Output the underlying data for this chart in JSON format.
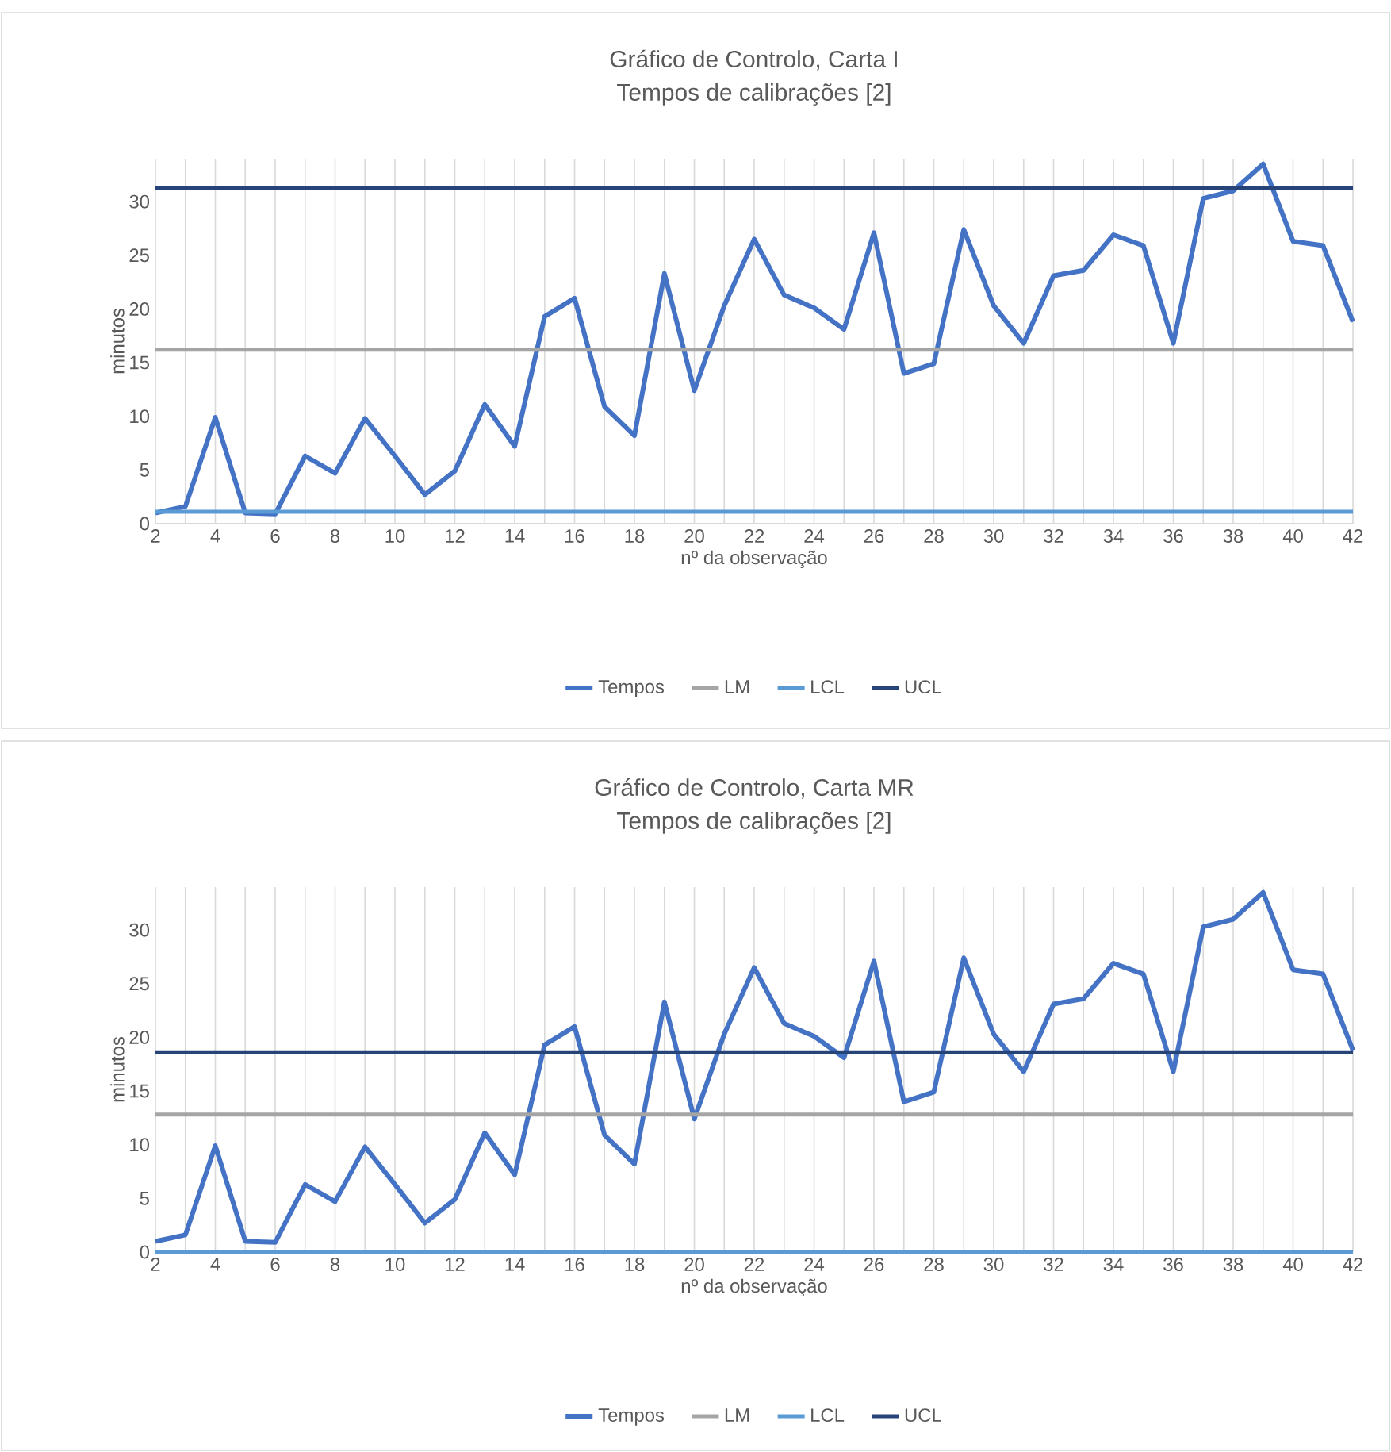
{
  "chart_data": [
    {
      "type": "line",
      "title": "Gráfico de Controlo, Carta I",
      "subtitle": "Tempos de calibrações [2]",
      "xlabel": "nº da observação",
      "ylabel": "minutos",
      "grid": "x",
      "legend": "bottom",
      "x": [
        2,
        3,
        4,
        5,
        6,
        7,
        8,
        9,
        10,
        11,
        12,
        13,
        14,
        15,
        16,
        17,
        18,
        19,
        20,
        21,
        22,
        23,
        24,
        25,
        26,
        27,
        28,
        29,
        30,
        31,
        32,
        33,
        34,
        35,
        36,
        37,
        38,
        39,
        40,
        41,
        42
      ],
      "xlim": [
        2,
        42
      ],
      "xticks": [
        2,
        {
          "value": 3,
          "label": null
        },
        4,
        {
          "value": 5,
          "label": null
        },
        6,
        {
          "value": 7,
          "label": null
        },
        8,
        {
          "value": 9,
          "label": null
        },
        10,
        {
          "value": 11,
          "label": null
        },
        12,
        {
          "value": 13,
          "label": null
        },
        14,
        {
          "value": 15,
          "label": null
        },
        16,
        {
          "value": 17,
          "label": null
        },
        18,
        {
          "value": 19,
          "label": null
        },
        20,
        {
          "value": 21,
          "label": null
        },
        22,
        {
          "value": 23,
          "label": null
        },
        24,
        {
          "value": 25,
          "label": null
        },
        26,
        {
          "value": 27,
          "label": null
        },
        28,
        {
          "value": 29,
          "label": null
        },
        30,
        {
          "value": 31,
          "label": null
        },
        32,
        {
          "value": 33,
          "label": null
        },
        34,
        {
          "value": 35,
          "label": null
        },
        36,
        {
          "value": 37,
          "label": null
        },
        38,
        {
          "value": 39,
          "label": null
        },
        40,
        {
          "value": 41,
          "label": null
        },
        42
      ],
      "ylim": [
        0,
        34
      ],
      "yticks": [
        0,
        5,
        10,
        15,
        20,
        25,
        30
      ],
      "series": [
        {
          "name": "Tempos",
          "color": "#4472c4",
          "values": [
            1.0,
            1.6,
            9.9,
            1.0,
            0.9,
            6.3,
            4.7,
            9.8,
            6.3,
            2.7,
            4.9,
            11.1,
            7.2,
            19.3,
            21.0,
            10.9,
            8.2,
            23.3,
            12.4,
            20.3,
            26.5,
            21.3,
            20.1,
            18.1,
            27.1,
            14.0,
            14.9,
            27.4,
            20.3,
            16.8,
            23.1,
            23.6,
            26.9,
            25.9,
            16.8,
            30.3,
            31.0,
            33.5,
            26.3,
            25.9,
            18.8
          ]
        },
        {
          "name": "LM",
          "color": "#a5a5a5",
          "values": [
            16.2,
            16.2,
            16.2,
            16.2,
            16.2,
            16.2,
            16.2,
            16.2,
            16.2,
            16.2,
            16.2,
            16.2,
            16.2,
            16.2,
            16.2,
            16.2,
            16.2,
            16.2,
            16.2,
            16.2,
            16.2,
            16.2,
            16.2,
            16.2,
            16.2,
            16.2,
            16.2,
            16.2,
            16.2,
            16.2,
            16.2,
            16.2,
            16.2,
            16.2,
            16.2,
            16.2,
            16.2,
            16.2,
            16.2,
            16.2,
            16.2
          ]
        },
        {
          "name": "LCL",
          "color": "#5b9bd5",
          "values": [
            1.1,
            1.1,
            1.1,
            1.1,
            1.1,
            1.1,
            1.1,
            1.1,
            1.1,
            1.1,
            1.1,
            1.1,
            1.1,
            1.1,
            1.1,
            1.1,
            1.1,
            1.1,
            1.1,
            1.1,
            1.1,
            1.1,
            1.1,
            1.1,
            1.1,
            1.1,
            1.1,
            1.1,
            1.1,
            1.1,
            1.1,
            1.1,
            1.1,
            1.1,
            1.1,
            1.1,
            1.1,
            1.1,
            1.1,
            1.1,
            1.1
          ]
        },
        {
          "name": "UCL",
          "color": "#264478",
          "values": [
            31.3,
            31.3,
            31.3,
            31.3,
            31.3,
            31.3,
            31.3,
            31.3,
            31.3,
            31.3,
            31.3,
            31.3,
            31.3,
            31.3,
            31.3,
            31.3,
            31.3,
            31.3,
            31.3,
            31.3,
            31.3,
            31.3,
            31.3,
            31.3,
            31.3,
            31.3,
            31.3,
            31.3,
            31.3,
            31.3,
            31.3,
            31.3,
            31.3,
            31.3,
            31.3,
            31.3,
            31.3,
            31.3,
            31.3,
            31.3,
            31.3
          ]
        }
      ]
    },
    {
      "type": "line",
      "title": "Gráfico de Controlo, Carta MR",
      "subtitle": "Tempos de calibrações [2]",
      "xlabel": "nº da observação",
      "ylabel": "minutos",
      "grid": "x",
      "legend": "bottom",
      "x": [
        2,
        3,
        4,
        5,
        6,
        7,
        8,
        9,
        10,
        11,
        12,
        13,
        14,
        15,
        16,
        17,
        18,
        19,
        20,
        21,
        22,
        23,
        24,
        25,
        26,
        27,
        28,
        29,
        30,
        31,
        32,
        33,
        34,
        35,
        36,
        37,
        38,
        39,
        40,
        41,
        42
      ],
      "xlim": [
        2,
        42
      ],
      "xticks": [
        2,
        {
          "value": 3,
          "label": null
        },
        4,
        {
          "value": 5,
          "label": null
        },
        6,
        {
          "value": 7,
          "label": null
        },
        8,
        {
          "value": 9,
          "label": null
        },
        10,
        {
          "value": 11,
          "label": null
        },
        12,
        {
          "value": 13,
          "label": null
        },
        14,
        {
          "value": 15,
          "label": null
        },
        16,
        {
          "value": 17,
          "label": null
        },
        18,
        {
          "value": 19,
          "label": null
        },
        20,
        {
          "value": 21,
          "label": null
        },
        22,
        {
          "value": 23,
          "label": null
        },
        24,
        {
          "value": 25,
          "label": null
        },
        26,
        {
          "value": 27,
          "label": null
        },
        28,
        {
          "value": 29,
          "label": null
        },
        30,
        {
          "value": 31,
          "label": null
        },
        32,
        {
          "value": 33,
          "label": null
        },
        34,
        {
          "value": 35,
          "label": null
        },
        36,
        {
          "value": 37,
          "label": null
        },
        38,
        {
          "value": 39,
          "label": null
        },
        40,
        {
          "value": 41,
          "label": null
        },
        42
      ],
      "ylim": [
        0,
        34
      ],
      "yticks": [
        0,
        5,
        10,
        15,
        20,
        25,
        30
      ],
      "series": [
        {
          "name": "Tempos",
          "color": "#4472c4",
          "values": [
            1.0,
            1.6,
            9.9,
            1.0,
            0.9,
            6.3,
            4.7,
            9.8,
            6.3,
            2.7,
            4.9,
            11.1,
            7.2,
            19.3,
            21.0,
            10.9,
            8.2,
            23.3,
            12.4,
            20.3,
            26.5,
            21.3,
            20.1,
            18.1,
            27.1,
            14.0,
            14.9,
            27.4,
            20.3,
            16.8,
            23.1,
            23.6,
            26.9,
            25.9,
            16.8,
            30.3,
            31.0,
            33.5,
            26.3,
            25.9,
            18.8
          ]
        },
        {
          "name": "LM",
          "color": "#a5a5a5",
          "values": [
            12.8,
            12.8,
            12.8,
            12.8,
            12.8,
            12.8,
            12.8,
            12.8,
            12.8,
            12.8,
            12.8,
            12.8,
            12.8,
            12.8,
            12.8,
            12.8,
            12.8,
            12.8,
            12.8,
            12.8,
            12.8,
            12.8,
            12.8,
            12.8,
            12.8,
            12.8,
            12.8,
            12.8,
            12.8,
            12.8,
            12.8,
            12.8,
            12.8,
            12.8,
            12.8,
            12.8,
            12.8,
            12.8,
            12.8,
            12.8,
            12.8
          ]
        },
        {
          "name": "LCL",
          "color": "#5b9bd5",
          "values": [
            0,
            0,
            0,
            0,
            0,
            0,
            0,
            0,
            0,
            0,
            0,
            0,
            0,
            0,
            0,
            0,
            0,
            0,
            0,
            0,
            0,
            0,
            0,
            0,
            0,
            0,
            0,
            0,
            0,
            0,
            0,
            0,
            0,
            0,
            0,
            0,
            0,
            0,
            0,
            0,
            0
          ]
        },
        {
          "name": "UCL",
          "color": "#264478",
          "values": [
            18.6,
            18.6,
            18.6,
            18.6,
            18.6,
            18.6,
            18.6,
            18.6,
            18.6,
            18.6,
            18.6,
            18.6,
            18.6,
            18.6,
            18.6,
            18.6,
            18.6,
            18.6,
            18.6,
            18.6,
            18.6,
            18.6,
            18.6,
            18.6,
            18.6,
            18.6,
            18.6,
            18.6,
            18.6,
            18.6,
            18.6,
            18.6,
            18.6,
            18.6,
            18.6,
            18.6,
            18.6,
            18.6,
            18.6,
            18.6,
            18.6
          ]
        }
      ]
    }
  ]
}
